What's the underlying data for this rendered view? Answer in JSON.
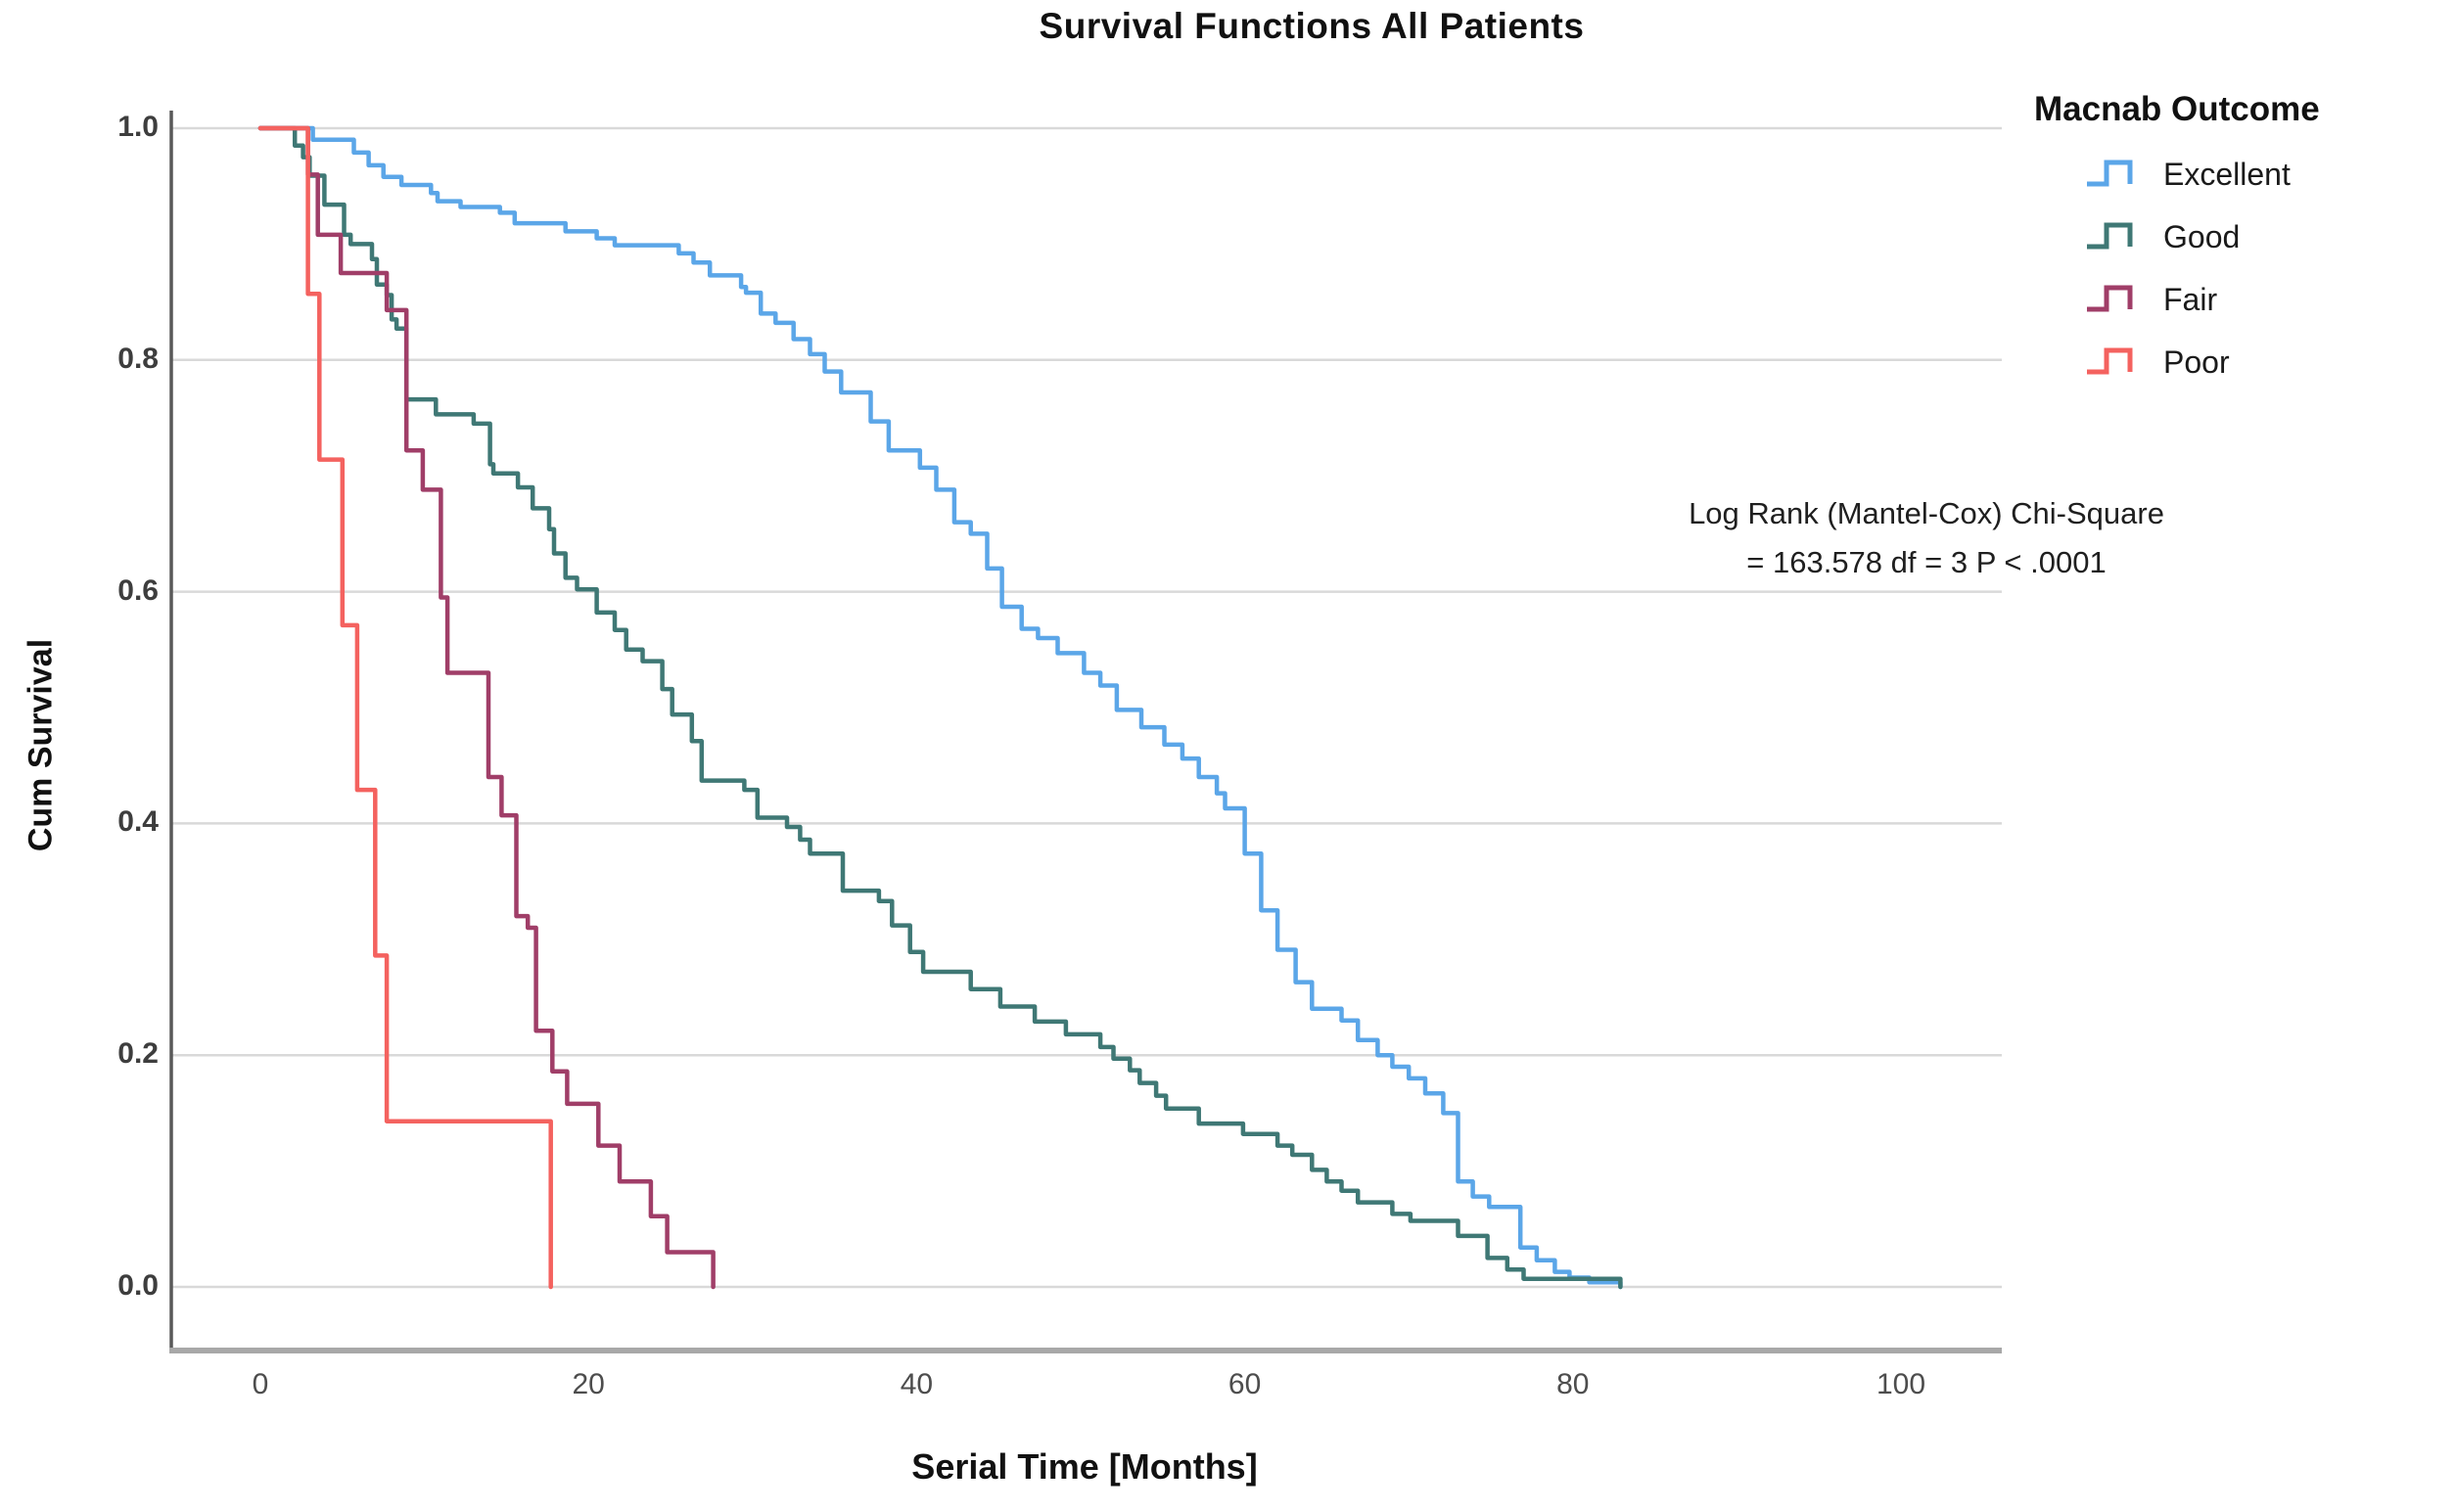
{
  "page": {
    "title": "Survival Functions All Patients"
  },
  "colors": {
    "grid": "#d9d9d9",
    "y_axis": "#595959",
    "x_baseline": "#a8a8a8",
    "excellent": "#5ba6e8",
    "good": "#3f7875",
    "fair": "#a03e68",
    "poor": "#f4625f"
  },
  "chart_data": {
    "type": "line",
    "subtype": "kaplan-meier-step",
    "title": "Survival Functions All Patients",
    "xlabel": "Serial Time [Months]",
    "ylabel": "Cum Survival",
    "xlim": [
      0,
      100
    ],
    "ylim": [
      0.0,
      1.0
    ],
    "grid": "horizontal",
    "x_ticks": [
      {
        "label": "0",
        "value": 0
      },
      {
        "label": "20",
        "value": 20
      },
      {
        "label": "40",
        "value": 40
      },
      {
        "label": "60",
        "value": 60
      },
      {
        "label": "80",
        "value": 80
      },
      {
        "label": "100",
        "value": 100
      }
    ],
    "y_ticks": [
      {
        "label": "0.0",
        "value": 0.0
      },
      {
        "label": "0.2",
        "value": 0.2
      },
      {
        "label": "0.4",
        "value": 0.4
      },
      {
        "label": "0.6",
        "value": 0.6
      },
      {
        "label": "0.8",
        "value": 0.8
      },
      {
        "label": "1.0",
        "value": 1.0
      }
    ],
    "legend": {
      "title": "Macnab Outcome",
      "position": "top-right"
    },
    "annotation": {
      "line1": "Log Rank (Mantel-Cox) Chi-Square",
      "line2": "= 163.578 df = 3 P < .0001"
    },
    "series": [
      {
        "name": "Excellent",
        "color": "#5ba6e8",
        "points": [
          [
            0,
            1.0
          ],
          [
            3.2,
            0.99
          ],
          [
            5.7,
            0.979
          ],
          [
            6.6,
            0.968
          ],
          [
            7.5,
            0.958
          ],
          [
            8.6,
            0.951
          ],
          [
            10.4,
            0.944
          ],
          [
            10.8,
            0.937
          ],
          [
            12.2,
            0.932
          ],
          [
            14.6,
            0.927
          ],
          [
            15.5,
            0.918
          ],
          [
            18.6,
            0.911
          ],
          [
            20.5,
            0.905
          ],
          [
            21.6,
            0.899
          ],
          [
            25.5,
            0.892
          ],
          [
            26.4,
            0.884
          ],
          [
            27.4,
            0.873
          ],
          [
            29.3,
            0.863
          ],
          [
            29.6,
            0.858
          ],
          [
            30.5,
            0.84
          ],
          [
            31.4,
            0.832
          ],
          [
            32.5,
            0.818
          ],
          [
            33.5,
            0.805
          ],
          [
            34.4,
            0.79
          ],
          [
            35.4,
            0.772
          ],
          [
            37.2,
            0.747
          ],
          [
            38.3,
            0.722
          ],
          [
            40.2,
            0.707
          ],
          [
            41.2,
            0.688
          ],
          [
            42.3,
            0.66
          ],
          [
            43.3,
            0.65
          ],
          [
            44.3,
            0.62
          ],
          [
            45.2,
            0.587
          ],
          [
            46.4,
            0.568
          ],
          [
            47.4,
            0.56
          ],
          [
            48.6,
            0.547
          ],
          [
            50.2,
            0.53
          ],
          [
            51.2,
            0.519
          ],
          [
            52.2,
            0.498
          ],
          [
            53.7,
            0.483
          ],
          [
            55.1,
            0.468
          ],
          [
            56.2,
            0.456
          ],
          [
            57.2,
            0.44
          ],
          [
            58.3,
            0.426
          ],
          [
            58.8,
            0.413
          ],
          [
            60,
            0.374
          ],
          [
            61,
            0.325
          ],
          [
            62,
            0.291
          ],
          [
            63.1,
            0.263
          ],
          [
            64.1,
            0.24
          ],
          [
            65.9,
            0.23
          ],
          [
            66.9,
            0.213
          ],
          [
            68.1,
            0.2
          ],
          [
            69,
            0.19
          ],
          [
            70,
            0.18
          ],
          [
            71,
            0.167
          ],
          [
            72.1,
            0.15
          ],
          [
            73,
            0.091
          ],
          [
            73.9,
            0.078
          ],
          [
            74.9,
            0.069
          ],
          [
            76.8,
            0.034
          ],
          [
            77.8,
            0.023
          ],
          [
            78.9,
            0.013
          ],
          [
            79.8,
            0.008
          ],
          [
            81,
            0.004
          ],
          [
            82.9,
            0
          ]
        ]
      },
      {
        "name": "Good",
        "color": "#3f7875",
        "points": [
          [
            0,
            1.0
          ],
          [
            2.1,
            0.985
          ],
          [
            2.6,
            0.975
          ],
          [
            3,
            0.959
          ],
          [
            3.9,
            0.934
          ],
          [
            5.1,
            0.908
          ],
          [
            5.5,
            0.9
          ],
          [
            6.8,
            0.887
          ],
          [
            7.1,
            0.865
          ],
          [
            7.7,
            0.856
          ],
          [
            8,
            0.835
          ],
          [
            8.3,
            0.827
          ],
          [
            8.9,
            0.766
          ],
          [
            10.7,
            0.753
          ],
          [
            13,
            0.745
          ],
          [
            14,
            0.71
          ],
          [
            14.2,
            0.702
          ],
          [
            15.7,
            0.69
          ],
          [
            16.6,
            0.672
          ],
          [
            17.6,
            0.654
          ],
          [
            17.9,
            0.633
          ],
          [
            18.6,
            0.612
          ],
          [
            19.3,
            0.602
          ],
          [
            20.5,
            0.582
          ],
          [
            21.6,
            0.567
          ],
          [
            22.3,
            0.55
          ],
          [
            23.3,
            0.54
          ],
          [
            24.5,
            0.516
          ],
          [
            25.1,
            0.494
          ],
          [
            26.3,
            0.471
          ],
          [
            26.9,
            0.437
          ],
          [
            29.5,
            0.429
          ],
          [
            30.3,
            0.405
          ],
          [
            32.1,
            0.397
          ],
          [
            32.9,
            0.386
          ],
          [
            33.5,
            0.374
          ],
          [
            35.5,
            0.342
          ],
          [
            37.7,
            0.333
          ],
          [
            38.5,
            0.312
          ],
          [
            39.6,
            0.289
          ],
          [
            40.4,
            0.272
          ],
          [
            43.3,
            0.257
          ],
          [
            45.1,
            0.242
          ],
          [
            47.2,
            0.229
          ],
          [
            49.1,
            0.218
          ],
          [
            51.2,
            0.207
          ],
          [
            52,
            0.197
          ],
          [
            53,
            0.187
          ],
          [
            53.6,
            0.176
          ],
          [
            54.6,
            0.165
          ],
          [
            55.2,
            0.154
          ],
          [
            57.2,
            0.141
          ],
          [
            59.9,
            0.132
          ],
          [
            62,
            0.122
          ],
          [
            62.9,
            0.114
          ],
          [
            64.1,
            0.101
          ],
          [
            65,
            0.091
          ],
          [
            65.9,
            0.083
          ],
          [
            66.9,
            0.073
          ],
          [
            69,
            0.063
          ],
          [
            70.1,
            0.057
          ],
          [
            73,
            0.044
          ],
          [
            74.8,
            0.025
          ],
          [
            76,
            0.015
          ],
          [
            77,
            0.007
          ],
          [
            82.9,
            0
          ]
        ]
      },
      {
        "name": "Fair",
        "color": "#a03e68",
        "points": [
          [
            0,
            1.0
          ],
          [
            2.9,
            0.96
          ],
          [
            3.5,
            0.908
          ],
          [
            4.9,
            0.875
          ],
          [
            7.7,
            0.843
          ],
          [
            8.9,
            0.722
          ],
          [
            9.9,
            0.688
          ],
          [
            11,
            0.595
          ],
          [
            11.4,
            0.53
          ],
          [
            13.9,
            0.44
          ],
          [
            14.7,
            0.407
          ],
          [
            15.6,
            0.32
          ],
          [
            16.3,
            0.31
          ],
          [
            16.8,
            0.221
          ],
          [
            17.8,
            0.186
          ],
          [
            18.7,
            0.158
          ],
          [
            20.6,
            0.122
          ],
          [
            21.9,
            0.091
          ],
          [
            23.8,
            0.061
          ],
          [
            24.8,
            0.03
          ],
          [
            27.6,
            0
          ]
        ]
      },
      {
        "name": "Poor",
        "color": "#f4625f",
        "points": [
          [
            0,
            1.0
          ],
          [
            2.9,
            0.857
          ],
          [
            3.6,
            0.714
          ],
          [
            5,
            0.571
          ],
          [
            5.9,
            0.429
          ],
          [
            7,
            0.286
          ],
          [
            7.7,
            0.143
          ],
          [
            17.7,
            0
          ]
        ]
      }
    ]
  }
}
